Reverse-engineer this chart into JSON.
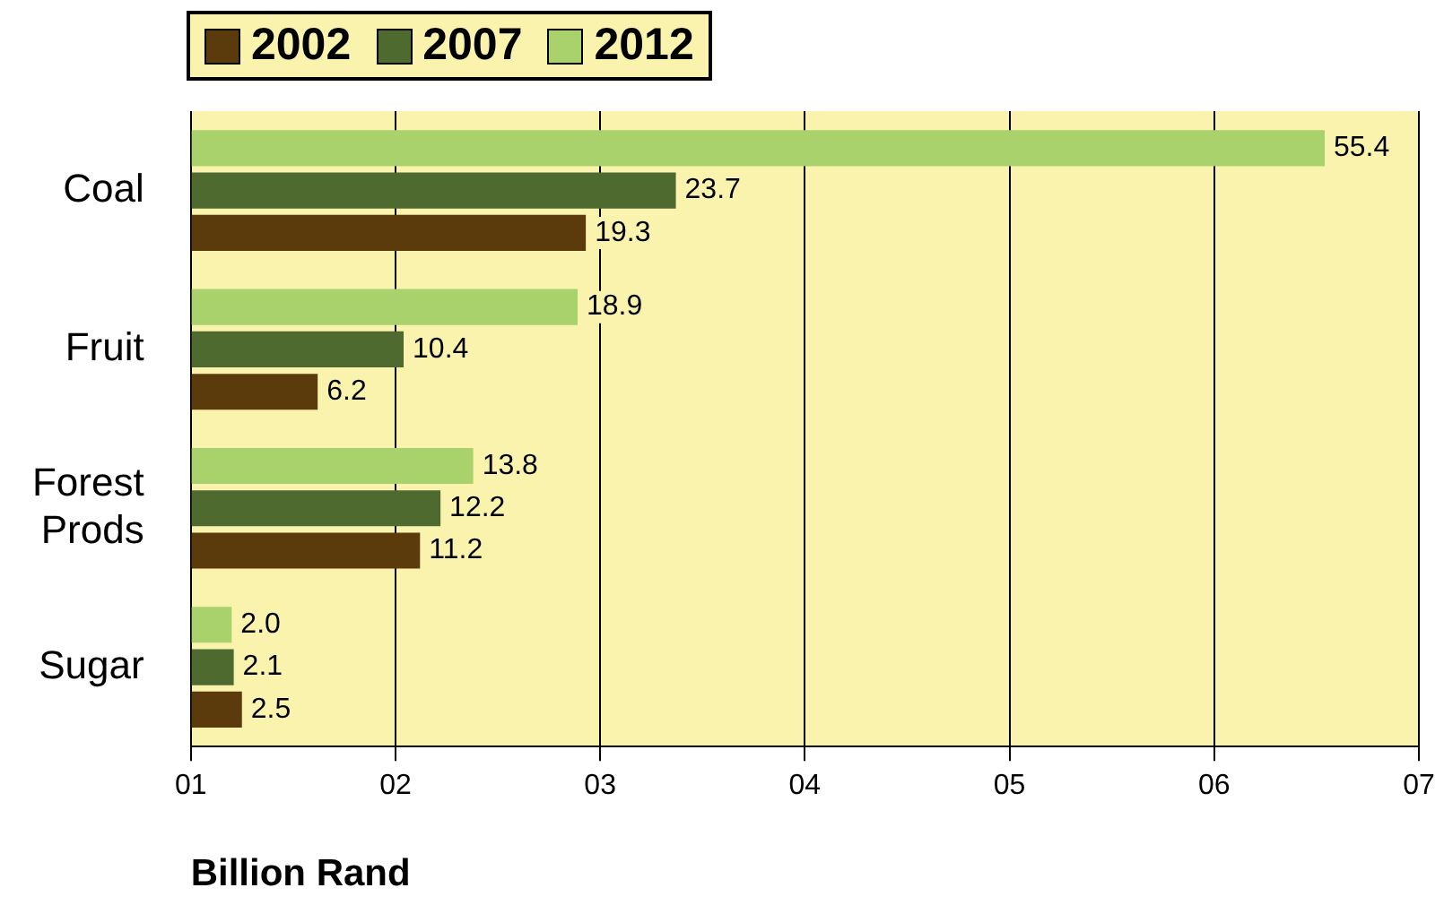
{
  "chart_data": {
    "type": "bar",
    "orientation": "horizontal",
    "xlabel": "Billion Rand",
    "categories": [
      "Coal",
      "Fruit",
      "Forest Prods",
      "Sugar"
    ],
    "series": [
      {
        "name": "2002",
        "color": "#5b3b0b",
        "values": [
          19.3,
          6.2,
          11.2,
          2.5
        ],
        "value_labels": [
          "19.3",
          "6.2",
          "11.2",
          "2.5"
        ]
      },
      {
        "name": "2007",
        "color": "#4e6a2e",
        "values": [
          23.7,
          10.4,
          12.2,
          2.1
        ],
        "value_labels": [
          "23.7",
          "10.4",
          "12.2",
          "2.1"
        ]
      },
      {
        "name": "2012",
        "color": "#a9d16c",
        "values": [
          55.4,
          18.9,
          13.8,
          2.0
        ],
        "value_labels": [
          "55.4",
          "18.9",
          "13.8",
          "2.0"
        ]
      }
    ],
    "xlim": [
      0,
      60
    ],
    "xticks": [
      {
        "value": 0,
        "label": null
      },
      {
        "value": 10,
        "label": null
      },
      {
        "value": 20,
        "label": null
      },
      {
        "value": 30,
        "label": null
      },
      {
        "value": 40,
        "label": null
      },
      {
        "value": 50,
        "label": null
      },
      {
        "value": 60,
        "label": null
      }
    ],
    "annotations": [
      "01",
      "02",
      "03",
      "04",
      "05",
      "06",
      "07"
    ],
    "grid": "x",
    "legend": "top left"
  }
}
